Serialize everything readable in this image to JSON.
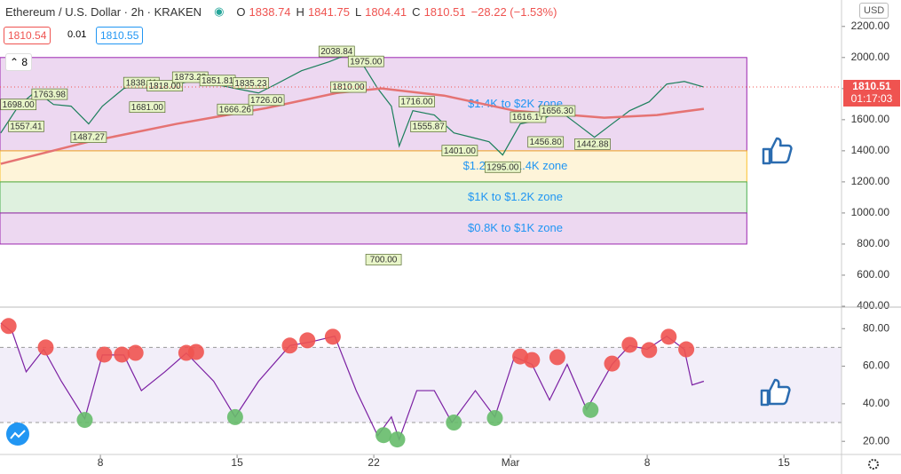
{
  "header": {
    "title": "Ethereum / U.S. Dollar · 2h · KRAKEN",
    "ohlc": [
      {
        "key": "O",
        "value": "1838.74"
      },
      {
        "key": "H",
        "value": "1841.75"
      },
      {
        "key": "L",
        "value": "1804.41"
      },
      {
        "key": "C",
        "value": "1810.51"
      }
    ],
    "change": "−28.22 (−1.53%)",
    "bid": "1810.54",
    "spread": "0.01",
    "ask": "1810.55",
    "indicators": "8",
    "currency": "USD"
  },
  "chart_data": [
    {
      "type": "line",
      "xlim": [
        1.86,
        44.95
      ],
      "ylim": [
        400,
        2370
      ],
      "yticks": [
        {
          "value": 2200,
          "label": "2200.00"
        },
        {
          "value": 2000,
          "label": "2000.00"
        },
        {
          "value": 1800,
          "label": "1800.00"
        },
        {
          "value": 1600,
          "label": "1600.00"
        },
        {
          "value": 1400,
          "label": "1400.00"
        },
        {
          "value": 1200,
          "label": "1200.00"
        },
        {
          "value": 1000,
          "label": "1000.00"
        },
        {
          "value": 800,
          "label": "800.00"
        },
        {
          "value": 600,
          "label": "600.00"
        },
        {
          "value": 400,
          "label": "400.00"
        }
      ],
      "zones": [
        {
          "label": "$1.4K to $2K zone",
          "from": 1400,
          "to": 2000,
          "color": "#9c27b0"
        },
        {
          "label": "$1.2K to $1.4K zone",
          "from": 1200,
          "to": 1400,
          "color": "#fbc02d"
        },
        {
          "label": "$1K to $1.2K zone",
          "from": 1000,
          "to": 1200,
          "color": "#4caf50"
        },
        {
          "label": "$0.8K to $1K zone",
          "from": 800,
          "to": 1000,
          "color": "#9c27b0"
        }
      ],
      "zone_end": 40.1,
      "series": [
        {
          "color": "#1b7f5b",
          "x": [
            1.9,
            2.8,
            3.7,
            4.6,
            5.5,
            6.4,
            7.1,
            8.2,
            9.1,
            10.1,
            11,
            11.9,
            12.8,
            13.9,
            15.1,
            16,
            17.3,
            18.7,
            19.6,
            20.5,
            21.2,
            21.9,
            22.3,
            23,
            24.1,
            25.1,
            26,
            26.9,
            27.6,
            28.5,
            29.6,
            30.5,
            31.4,
            32.3,
            33.2,
            34.1,
            35.1,
            36,
            36.9,
            37.9
          ],
          "values": [
            1515,
            1687,
            1784,
            1698,
            1687,
            1573,
            1687,
            1801,
            1829,
            1812,
            1829,
            1858,
            1829,
            1801,
            1772,
            1829,
            1915,
            1972,
            2017,
            1943,
            1801,
            1687,
            1430,
            1658,
            1630,
            1515,
            1487,
            1458,
            1373,
            1573,
            1601,
            1658,
            1573,
            1487,
            1573,
            1658,
            1715,
            1829,
            1846,
            1810
          ]
        },
        {
          "color": "#e57373",
          "x": [
            1.9,
            6.4,
            10.9,
            15.5,
            19.1,
            21.4,
            24.6,
            28.2,
            32.8,
            35.5,
            37.9
          ],
          "values": [
            1316,
            1458,
            1573,
            1675,
            1772,
            1801,
            1755,
            1658,
            1613,
            1630,
            1670
          ]
        }
      ],
      "price_labels": [
        {
          "x": 2.8,
          "value": 1698,
          "label": "1698.00"
        },
        {
          "x": 4.4,
          "value": 1763.98,
          "label": "1763.98"
        },
        {
          "x": 3.2,
          "value": 1557.41,
          "label": "1557.41"
        },
        {
          "x": 6.4,
          "value": 1487.27,
          "label": "1487.27"
        },
        {
          "x": 9.1,
          "value": 1838.11,
          "label": "1838.11"
        },
        {
          "x": 10.3,
          "value": 1818,
          "label": "1818.00"
        },
        {
          "x": 9.4,
          "value": 1681,
          "label": "1681.00"
        },
        {
          "x": 11.6,
          "value": 1873.28,
          "label": "1873.28"
        },
        {
          "x": 13,
          "value": 1851.81,
          "label": "1851.81"
        },
        {
          "x": 14.7,
          "value": 1835.23,
          "label": "1835.23"
        },
        {
          "x": 13.9,
          "value": 1666.26,
          "label": "1666.26"
        },
        {
          "x": 15.5,
          "value": 1726,
          "label": "1726.00"
        },
        {
          "x": 19.1,
          "value": 2038.84,
          "label": "2038.84"
        },
        {
          "x": 20.6,
          "value": 1975,
          "label": "1975.00"
        },
        {
          "x": 19.7,
          "value": 1810,
          "label": "1810.00"
        },
        {
          "x": 23.2,
          "value": 1716,
          "label": "1716.00"
        },
        {
          "x": 23.8,
          "value": 1555.87,
          "label": "1555.87"
        },
        {
          "x": 25.4,
          "value": 1401,
          "label": "1401.00"
        },
        {
          "x": 28.9,
          "value": 1616.17,
          "label": "1616.17"
        },
        {
          "x": 30.4,
          "value": 1656.3,
          "label": "1656.30"
        },
        {
          "x": 27.6,
          "value": 1295,
          "label": "1295.00"
        },
        {
          "x": 29.8,
          "value": 1456.8,
          "label": "1456.80"
        },
        {
          "x": 32.2,
          "value": 1442.88,
          "label": "1442.88"
        },
        {
          "x": 21.5,
          "value": 700,
          "label": "700.00"
        }
      ],
      "last_price": {
        "value": 1810.51,
        "label": "1810.51",
        "countdown": "01:17:03",
        "color": "#ef5350"
      }
    },
    {
      "type": "line",
      "xlim": [
        1.86,
        44.95
      ],
      "ylim": [
        13,
        91
      ],
      "xticks": [
        {
          "value": 7,
          "label": "8"
        },
        {
          "value": 14,
          "label": "15"
        },
        {
          "value": 21,
          "label": "22"
        },
        {
          "value": 28,
          "label": "Mar"
        },
        {
          "value": 35,
          "label": "8"
        },
        {
          "value": 42,
          "label": "15"
        }
      ],
      "yticks": [
        {
          "value": 80,
          "label": "80.00"
        },
        {
          "value": 60,
          "label": "60.00"
        },
        {
          "value": 40,
          "label": "40.00"
        },
        {
          "value": 20,
          "label": "20.00"
        }
      ],
      "bands": [
        30,
        70
      ],
      "series": [
        {
          "color": "#7b1fa2",
          "x": [
            1.9,
            2.5,
            3.2,
            4.1,
            5,
            6.2,
            7.1,
            8.2,
            9.1,
            10.3,
            11.4,
            12.8,
            13.9,
            15.1,
            16.7,
            17.8,
            19,
            20.1,
            21.2,
            21.9,
            22.3,
            23.2,
            24.1,
            25,
            26.2,
            27.2,
            28.2,
            29.1,
            30,
            30.9,
            31.9,
            33.2,
            34.1,
            35,
            36,
            36.9,
            37.3,
            37.9
          ],
          "values": [
            83,
            78,
            57,
            69,
            52,
            32,
            66,
            66,
            47,
            57,
            67,
            52,
            33,
            52,
            71,
            73,
            76,
            47,
            23,
            33,
            21,
            47,
            47,
            30,
            47,
            33,
            65,
            61,
            42,
            61,
            37,
            61,
            71,
            69,
            76,
            69,
            50,
            52
          ]
        }
      ],
      "overbought": {
        "color": "#ef5350",
        "x": [
          2.3,
          4.2,
          7.2,
          8.1,
          8.8,
          11.4,
          11.9,
          16.7,
          17.6,
          18.9,
          28.5,
          29.1,
          30.4,
          33.2,
          34.1,
          35.1,
          36.1,
          37
        ],
        "values": [
          81.4,
          70,
          66.2,
          66.2,
          67.1,
          67.1,
          67.6,
          71,
          73.8,
          75.7,
          65.2,
          63.3,
          64.8,
          61.4,
          71.4,
          68.6,
          75.7,
          69
        ]
      },
      "oversold": {
        "color": "#66bb6a",
        "x": [
          6.2,
          13.9,
          21.5,
          22.2,
          25.1,
          27.2,
          32.1
        ],
        "values": [
          31.4,
          32.9,
          23.3,
          21,
          30,
          32.4,
          36.7
        ]
      }
    }
  ]
}
